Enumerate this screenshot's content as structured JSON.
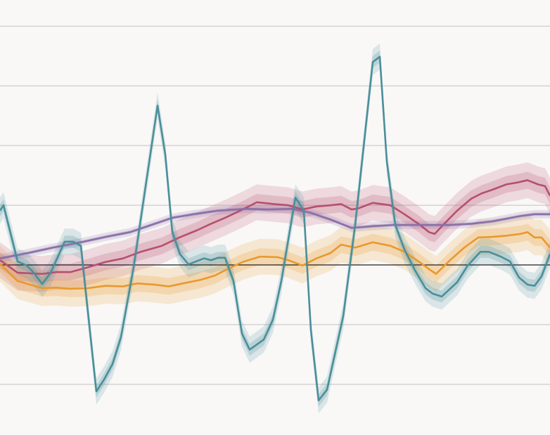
{
  "chart_data": {
    "type": "line",
    "title": "",
    "xlabel": "",
    "ylabel": "",
    "xlim": [
      0,
      78.2
    ],
    "ylim": [
      -2.85,
      4.44
    ],
    "grid": true,
    "gridlines_y": [
      -2,
      -1,
      1,
      2,
      3,
      4
    ],
    "zero_line": 0,
    "legend": "none",
    "colors": {
      "background": "#f9f8f7",
      "grid": "#d6d4d2",
      "zero_line": "#222222"
    },
    "series": [
      {
        "color": "#b5506e",
        "band_inner": 0.14,
        "band_outer": 0.3,
        "points": [
          [
            0,
            0.08
          ],
          [
            2.5,
            -0.13
          ],
          [
            6,
            -0.15
          ],
          [
            8,
            -0.12
          ],
          [
            10,
            -0.12
          ],
          [
            12.5,
            -0.04
          ],
          [
            15,
            0.05
          ],
          [
            17.5,
            0.11
          ],
          [
            20,
            0.22
          ],
          [
            23,
            0.32
          ],
          [
            25.5,
            0.46
          ],
          [
            28,
            0.58
          ],
          [
            30,
            0.69
          ],
          [
            32,
            0.79
          ],
          [
            34.5,
            0.93
          ],
          [
            36.5,
            1.05
          ],
          [
            39,
            1.02
          ],
          [
            41,
            1.0
          ],
          [
            43,
            0.93
          ],
          [
            45,
            0.98
          ],
          [
            47,
            1.0
          ],
          [
            48.5,
            1.02
          ],
          [
            50,
            0.93
          ],
          [
            51,
            0.95
          ],
          [
            53,
            1.04
          ],
          [
            55.5,
            1.0
          ],
          [
            57.5,
            0.85
          ],
          [
            59.5,
            0.69
          ],
          [
            61,
            0.55
          ],
          [
            61.8,
            0.52
          ],
          [
            63,
            0.67
          ],
          [
            65,
            0.91
          ],
          [
            67,
            1.11
          ],
          [
            68.5,
            1.2
          ],
          [
            70,
            1.26
          ],
          [
            72,
            1.35
          ],
          [
            73.5,
            1.38
          ],
          [
            75,
            1.42
          ],
          [
            76.5,
            1.35
          ],
          [
            77.5,
            1.32
          ],
          [
            78.2,
            1.16
          ]
        ]
      },
      {
        "color": "#e8992e",
        "band_inner": 0.14,
        "band_outer": 0.3,
        "points": [
          [
            0,
            0.02
          ],
          [
            2.5,
            -0.27
          ],
          [
            6,
            -0.39
          ],
          [
            8,
            -0.38
          ],
          [
            10,
            -0.4
          ],
          [
            12.5,
            -0.39
          ],
          [
            15,
            -0.35
          ],
          [
            17.5,
            -0.36
          ],
          [
            19.5,
            -0.31
          ],
          [
            22,
            -0.33
          ],
          [
            24,
            -0.36
          ],
          [
            26,
            -0.31
          ],
          [
            28.5,
            -0.25
          ],
          [
            30.5,
            -0.18
          ],
          [
            32.5,
            -0.06
          ],
          [
            34.5,
            0.05
          ],
          [
            37,
            0.14
          ],
          [
            39.5,
            0.13
          ],
          [
            41,
            0.08
          ],
          [
            43,
            -0.01
          ],
          [
            45,
            0.11
          ],
          [
            47,
            0.2
          ],
          [
            48.5,
            0.34
          ],
          [
            50.5,
            0.29
          ],
          [
            53,
            0.38
          ],
          [
            55.5,
            0.32
          ],
          [
            57.5,
            0.22
          ],
          [
            59.5,
            0.06
          ],
          [
            61,
            -0.07
          ],
          [
            62,
            -0.15
          ],
          [
            64,
            0.08
          ],
          [
            66,
            0.29
          ],
          [
            68,
            0.46
          ],
          [
            70,
            0.47
          ],
          [
            72,
            0.49
          ],
          [
            74,
            0.52
          ],
          [
            75,
            0.55
          ],
          [
            76,
            0.46
          ],
          [
            77,
            0.46
          ],
          [
            78.2,
            0.29
          ]
        ]
      },
      {
        "color": "#8a6fa8",
        "band_inner": 0.03,
        "band_outer": 0.07,
        "points": [
          [
            0,
            0.11
          ],
          [
            4,
            0.2
          ],
          [
            7.5,
            0.29
          ],
          [
            11.5,
            0.38
          ],
          [
            15,
            0.47
          ],
          [
            18.5,
            0.55
          ],
          [
            21.5,
            0.67
          ],
          [
            24.5,
            0.79
          ],
          [
            27.5,
            0.85
          ],
          [
            31,
            0.91
          ],
          [
            35,
            0.94
          ],
          [
            38,
            0.93
          ],
          [
            41.5,
            0.94
          ],
          [
            44,
            0.88
          ],
          [
            47,
            0.76
          ],
          [
            50,
            0.62
          ],
          [
            53,
            0.65
          ],
          [
            56,
            0.67
          ],
          [
            60,
            0.67
          ],
          [
            64,
            0.67
          ],
          [
            67,
            0.69
          ],
          [
            70,
            0.73
          ],
          [
            74,
            0.82
          ],
          [
            76,
            0.85
          ],
          [
            78.2,
            0.85
          ]
        ]
      },
      {
        "color": "#4a8f9a",
        "band_inner": 0.1,
        "band_outer": 0.22,
        "points": [
          [
            0,
            0.91
          ],
          [
            0.5,
            1.0
          ],
          [
            2.5,
            0.06
          ],
          [
            3.8,
            -0.01
          ],
          [
            4.8,
            -0.13
          ],
          [
            6,
            -0.32
          ],
          [
            7.2,
            -0.13
          ],
          [
            9.2,
            0.39
          ],
          [
            10.4,
            0.39
          ],
          [
            11.5,
            0.32
          ],
          [
            13.7,
            -2.12
          ],
          [
            14.8,
            -1.92
          ],
          [
            16,
            -1.66
          ],
          [
            17.2,
            -1.21
          ],
          [
            19,
            -0.04
          ],
          [
            22.4,
            2.67
          ],
          [
            23.5,
            1.85
          ],
          [
            24.5,
            0.55
          ],
          [
            25.6,
            0.18
          ],
          [
            26.8,
            0.01
          ],
          [
            29,
            0.11
          ],
          [
            30,
            0.08
          ],
          [
            31,
            0.12
          ],
          [
            32,
            0.12
          ],
          [
            33.2,
            -0.27
          ],
          [
            34.4,
            -1.15
          ],
          [
            35.5,
            -1.42
          ],
          [
            37.5,
            -1.25
          ],
          [
            38.8,
            -0.92
          ],
          [
            40,
            -0.27
          ],
          [
            42,
            1.13
          ],
          [
            43.2,
            0.91
          ],
          [
            44.2,
            -1.09
          ],
          [
            45.3,
            -2.27
          ],
          [
            46.5,
            -2.09
          ],
          [
            48.8,
            -0.86
          ],
          [
            50.5,
            0.67
          ],
          [
            53,
            3.4
          ],
          [
            54,
            3.49
          ],
          [
            55,
            1.73
          ],
          [
            56.2,
            0.67
          ],
          [
            57.5,
            0.26
          ],
          [
            59,
            -0.09
          ],
          [
            60.5,
            -0.39
          ],
          [
            61.5,
            -0.48
          ],
          [
            62.8,
            -0.53
          ],
          [
            65,
            -0.29
          ],
          [
            66.5,
            -0.01
          ],
          [
            68.3,
            0.22
          ],
          [
            69.5,
            0.22
          ],
          [
            71.2,
            0.14
          ],
          [
            72.5,
            0.06
          ],
          [
            73.8,
            -0.21
          ],
          [
            75,
            -0.33
          ],
          [
            76,
            -0.35
          ],
          [
            77,
            -0.19
          ],
          [
            78.2,
            0.18
          ]
        ]
      }
    ]
  }
}
